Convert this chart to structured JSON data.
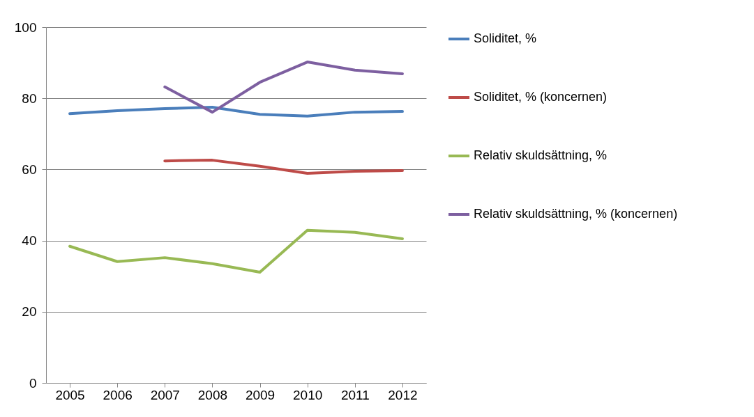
{
  "chart_data": {
    "type": "line",
    "categories": [
      "2005",
      "2006",
      "2007",
      "2008",
      "2009",
      "2010",
      "2011",
      "2012"
    ],
    "ylim": [
      0,
      100
    ],
    "yticks": [
      0,
      20,
      40,
      60,
      80,
      100
    ],
    "grid": "y",
    "legend": "right",
    "marker": "none",
    "line_style": "solid",
    "series": [
      {
        "name": "Soliditet, %",
        "color": "#4a7ebb",
        "values": [
          75.7,
          76.5,
          77.1,
          77.5,
          75.5,
          75.0,
          76.1,
          76.3
        ]
      },
      {
        "name": "Soliditet, % (koncernen)",
        "color": "#be4b48",
        "values": [
          null,
          null,
          62.4,
          62.6,
          60.9,
          58.9,
          59.5,
          59.7
        ]
      },
      {
        "name": "Relativ skuldsättning, %",
        "color": "#98b954",
        "values": [
          38.4,
          34.1,
          35.2,
          33.5,
          31.1,
          42.9,
          42.3,
          40.5
        ]
      },
      {
        "name": "Relativ skuldsättning, % (koncernen)",
        "color": "#7d5fa0",
        "values": [
          null,
          null,
          83.2,
          76.1,
          84.5,
          90.2,
          87.9,
          86.9
        ]
      }
    ]
  }
}
